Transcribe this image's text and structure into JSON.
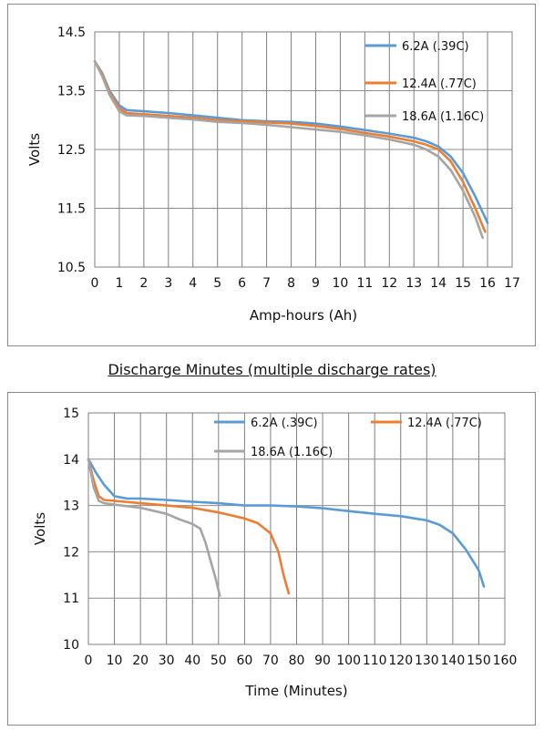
{
  "caption": "Discharge Minutes (multiple discharge rates)",
  "chart_data": [
    {
      "type": "line",
      "xlabel": "Amp-hours (Ah)",
      "ylabel": "Volts",
      "xlim": [
        0,
        17
      ],
      "ylim": [
        10.5,
        14.5
      ],
      "x_ticks": [
        "0",
        "1",
        "2",
        "3",
        "4",
        "5",
        "6",
        "7",
        "8",
        "9",
        "10",
        "11",
        "12",
        "13",
        "14",
        "15",
        "16",
        "17"
      ],
      "y_ticks": [
        "10.5",
        "11.5",
        "12.5",
        "13.5",
        "14.5"
      ],
      "grid": true,
      "legend_position": "right",
      "series": [
        {
          "name": "6.2A (.39C)",
          "color": "#5b9bd5",
          "x": [
            0,
            0.3,
            0.6,
            1,
            1.3,
            2,
            3,
            4,
            5,
            6,
            7,
            8,
            9,
            10,
            11,
            12,
            13,
            13.5,
            14,
            14.5,
            15,
            15.5,
            16
          ],
          "y": [
            14.0,
            13.8,
            13.5,
            13.25,
            13.17,
            13.15,
            13.12,
            13.08,
            13.04,
            13.0,
            12.98,
            12.97,
            12.94,
            12.89,
            12.83,
            12.77,
            12.7,
            12.64,
            12.55,
            12.38,
            12.1,
            11.7,
            11.25
          ]
        },
        {
          "name": "12.4A (.77C)",
          "color": "#ed7d31",
          "x": [
            0,
            0.3,
            0.6,
            1,
            1.3,
            2,
            3,
            4,
            5,
            6,
            7,
            8,
            9,
            10,
            11,
            12,
            13,
            13.5,
            14,
            14.5,
            15,
            15.5,
            15.9
          ],
          "y": [
            14.0,
            13.78,
            13.47,
            13.2,
            13.12,
            13.1,
            13.07,
            13.04,
            13.0,
            12.98,
            12.96,
            12.94,
            12.9,
            12.85,
            12.78,
            12.72,
            12.64,
            12.58,
            12.5,
            12.3,
            11.95,
            11.5,
            11.1
          ]
        },
        {
          "name": "18.6A (1.16C)",
          "color": "#a5a5a5",
          "x": [
            0,
            0.3,
            0.6,
            1,
            1.3,
            2,
            3,
            4,
            5,
            6,
            7,
            8,
            9,
            10,
            11,
            12,
            13,
            13.5,
            14,
            14.5,
            15,
            15.5,
            15.8
          ],
          "y": [
            14.0,
            13.75,
            13.43,
            13.15,
            13.08,
            13.07,
            13.04,
            13.01,
            12.97,
            12.95,
            12.92,
            12.88,
            12.84,
            12.8,
            12.74,
            12.67,
            12.58,
            12.5,
            12.38,
            12.15,
            11.8,
            11.35,
            11.0
          ]
        }
      ]
    },
    {
      "type": "line",
      "xlabel": "Time (Minutes)",
      "ylabel": "Volts",
      "xlim": [
        0,
        160
      ],
      "ylim": [
        10,
        15
      ],
      "x_ticks": [
        "0",
        "10",
        "20",
        "30",
        "40",
        "50",
        "60",
        "70",
        "80",
        "90",
        "100",
        "110",
        "120",
        "130",
        "140",
        "150",
        "160"
      ],
      "y_ticks": [
        "10",
        "11",
        "12",
        "13",
        "14",
        "15"
      ],
      "grid": true,
      "legend_position": "top",
      "series": [
        {
          "name": "6.2A (.39C)",
          "color": "#5b9bd5",
          "x": [
            0,
            3,
            6,
            10,
            15,
            20,
            30,
            40,
            50,
            60,
            70,
            80,
            90,
            100,
            110,
            120,
            130,
            135,
            140,
            145,
            150,
            152
          ],
          "y": [
            14.0,
            13.7,
            13.45,
            13.2,
            13.15,
            13.15,
            13.12,
            13.08,
            13.05,
            13.0,
            13.0,
            12.98,
            12.94,
            12.88,
            12.82,
            12.77,
            12.68,
            12.58,
            12.4,
            12.05,
            11.6,
            11.25
          ]
        },
        {
          "name": "12.4A (.77C)",
          "color": "#ed7d31",
          "x": [
            0,
            2,
            4,
            6,
            10,
            20,
            30,
            40,
            50,
            60,
            65,
            70,
            73,
            75,
            77
          ],
          "y": [
            14.0,
            13.55,
            13.2,
            13.12,
            13.1,
            13.05,
            13.0,
            12.95,
            12.85,
            12.72,
            12.62,
            12.4,
            12.0,
            11.5,
            11.1
          ]
        },
        {
          "name": "18.6A (1.16C)",
          "color": "#a5a5a5",
          "x": [
            0,
            2,
            4,
            6,
            10,
            20,
            30,
            35,
            40,
            43,
            45,
            47,
            49,
            50.5
          ],
          "y": [
            14.0,
            13.4,
            13.1,
            13.05,
            13.02,
            12.95,
            12.82,
            12.7,
            12.6,
            12.5,
            12.2,
            11.8,
            11.4,
            11.05
          ]
        }
      ]
    }
  ]
}
